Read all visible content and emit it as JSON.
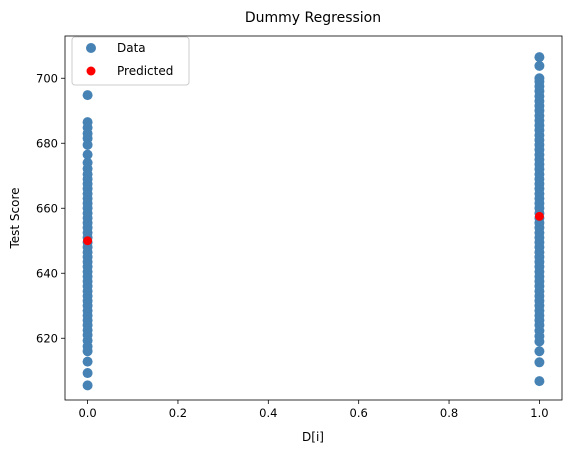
{
  "chart_data": {
    "type": "scatter",
    "title": "Dummy Regression",
    "xlabel": "D[i]",
    "ylabel": "Test Score",
    "xlim": [
      -0.05,
      1.05
    ],
    "ylim": [
      601,
      713
    ],
    "xticks": [
      0.0,
      0.2,
      0.4,
      0.6,
      0.8,
      1.0
    ],
    "xtick_labels": [
      "0.0",
      "0.2",
      "0.4",
      "0.6",
      "0.8",
      "1.0"
    ],
    "yticks": [
      620,
      640,
      660,
      680,
      700
    ],
    "ytick_labels": [
      "620",
      "640",
      "660",
      "680",
      "700"
    ],
    "grid": false,
    "legend_position": "top-left",
    "series": [
      {
        "name": "Data",
        "color": "#4682b4",
        "points": [
          [
            0,
            605.5
          ],
          [
            0,
            609.3
          ],
          [
            0,
            612.8
          ],
          [
            0,
            616.0
          ],
          [
            0,
            617.5
          ],
          [
            0,
            619.3
          ],
          [
            0,
            621.0
          ],
          [
            0,
            622.5
          ],
          [
            0,
            624.0
          ],
          [
            0,
            625.5
          ],
          [
            0,
            627.0
          ],
          [
            0,
            628.5
          ],
          [
            0,
            630.0
          ],
          [
            0,
            631.5
          ],
          [
            0,
            633.0
          ],
          [
            0,
            634.5
          ],
          [
            0,
            636.0
          ],
          [
            0,
            637.5
          ],
          [
            0,
            639.0
          ],
          [
            0,
            640.5
          ],
          [
            0,
            642.0
          ],
          [
            0,
            643.5
          ],
          [
            0,
            645.0
          ],
          [
            0,
            646.5
          ],
          [
            0,
            648.0
          ],
          [
            0,
            649.5
          ],
          [
            0,
            651.0
          ],
          [
            0,
            652.5
          ],
          [
            0,
            654.0
          ],
          [
            0,
            655.5
          ],
          [
            0,
            657.0
          ],
          [
            0,
            658.5
          ],
          [
            0,
            660.0
          ],
          [
            0,
            661.5
          ],
          [
            0,
            663.0
          ],
          [
            0,
            664.5
          ],
          [
            0,
            666.0
          ],
          [
            0,
            667.5
          ],
          [
            0,
            669.0
          ],
          [
            0,
            670.5
          ],
          [
            0,
            672.2
          ],
          [
            0,
            674.0
          ],
          [
            0,
            676.5
          ],
          [
            0,
            679.5
          ],
          [
            0,
            681.5
          ],
          [
            0,
            683.0
          ],
          [
            0,
            684.8
          ],
          [
            0,
            686.5
          ],
          [
            0,
            694.8
          ],
          [
            1,
            606.8
          ],
          [
            1,
            612.6
          ],
          [
            1,
            616.0
          ],
          [
            1,
            619.0
          ],
          [
            1,
            620.6
          ],
          [
            1,
            622.3
          ],
          [
            1,
            624.0
          ],
          [
            1,
            625.5
          ],
          [
            1,
            627.0
          ],
          [
            1,
            628.5
          ],
          [
            1,
            630.0
          ],
          [
            1,
            631.5
          ],
          [
            1,
            633.0
          ],
          [
            1,
            634.5
          ],
          [
            1,
            636.0
          ],
          [
            1,
            637.5
          ],
          [
            1,
            639.0
          ],
          [
            1,
            640.5
          ],
          [
            1,
            642.0
          ],
          [
            1,
            643.5
          ],
          [
            1,
            645.0
          ],
          [
            1,
            646.5
          ],
          [
            1,
            648.0
          ],
          [
            1,
            649.5
          ],
          [
            1,
            651.0
          ],
          [
            1,
            652.5
          ],
          [
            1,
            654.0
          ],
          [
            1,
            655.5
          ],
          [
            1,
            657.0
          ],
          [
            1,
            658.5
          ],
          [
            1,
            660.0
          ],
          [
            1,
            661.5
          ],
          [
            1,
            663.0
          ],
          [
            1,
            664.5
          ],
          [
            1,
            666.0
          ],
          [
            1,
            667.5
          ],
          [
            1,
            669.0
          ],
          [
            1,
            670.5
          ],
          [
            1,
            672.0
          ],
          [
            1,
            673.5
          ],
          [
            1,
            675.0
          ],
          [
            1,
            676.5
          ],
          [
            1,
            678.0
          ],
          [
            1,
            679.5
          ],
          [
            1,
            681.0
          ],
          [
            1,
            682.5
          ],
          [
            1,
            684.0
          ],
          [
            1,
            685.5
          ],
          [
            1,
            687.0
          ],
          [
            1,
            688.5
          ],
          [
            1,
            690.0
          ],
          [
            1,
            691.5
          ],
          [
            1,
            693.0
          ],
          [
            1,
            694.5
          ],
          [
            1,
            696.0
          ],
          [
            1,
            697.5
          ],
          [
            1,
            699.0
          ],
          [
            1,
            700.0
          ],
          [
            1,
            703.8
          ],
          [
            1,
            706.5
          ]
        ]
      },
      {
        "name": "Predicted",
        "color": "#ff0000",
        "points": [
          [
            0,
            650.0
          ],
          [
            1,
            657.5
          ]
        ]
      }
    ]
  }
}
